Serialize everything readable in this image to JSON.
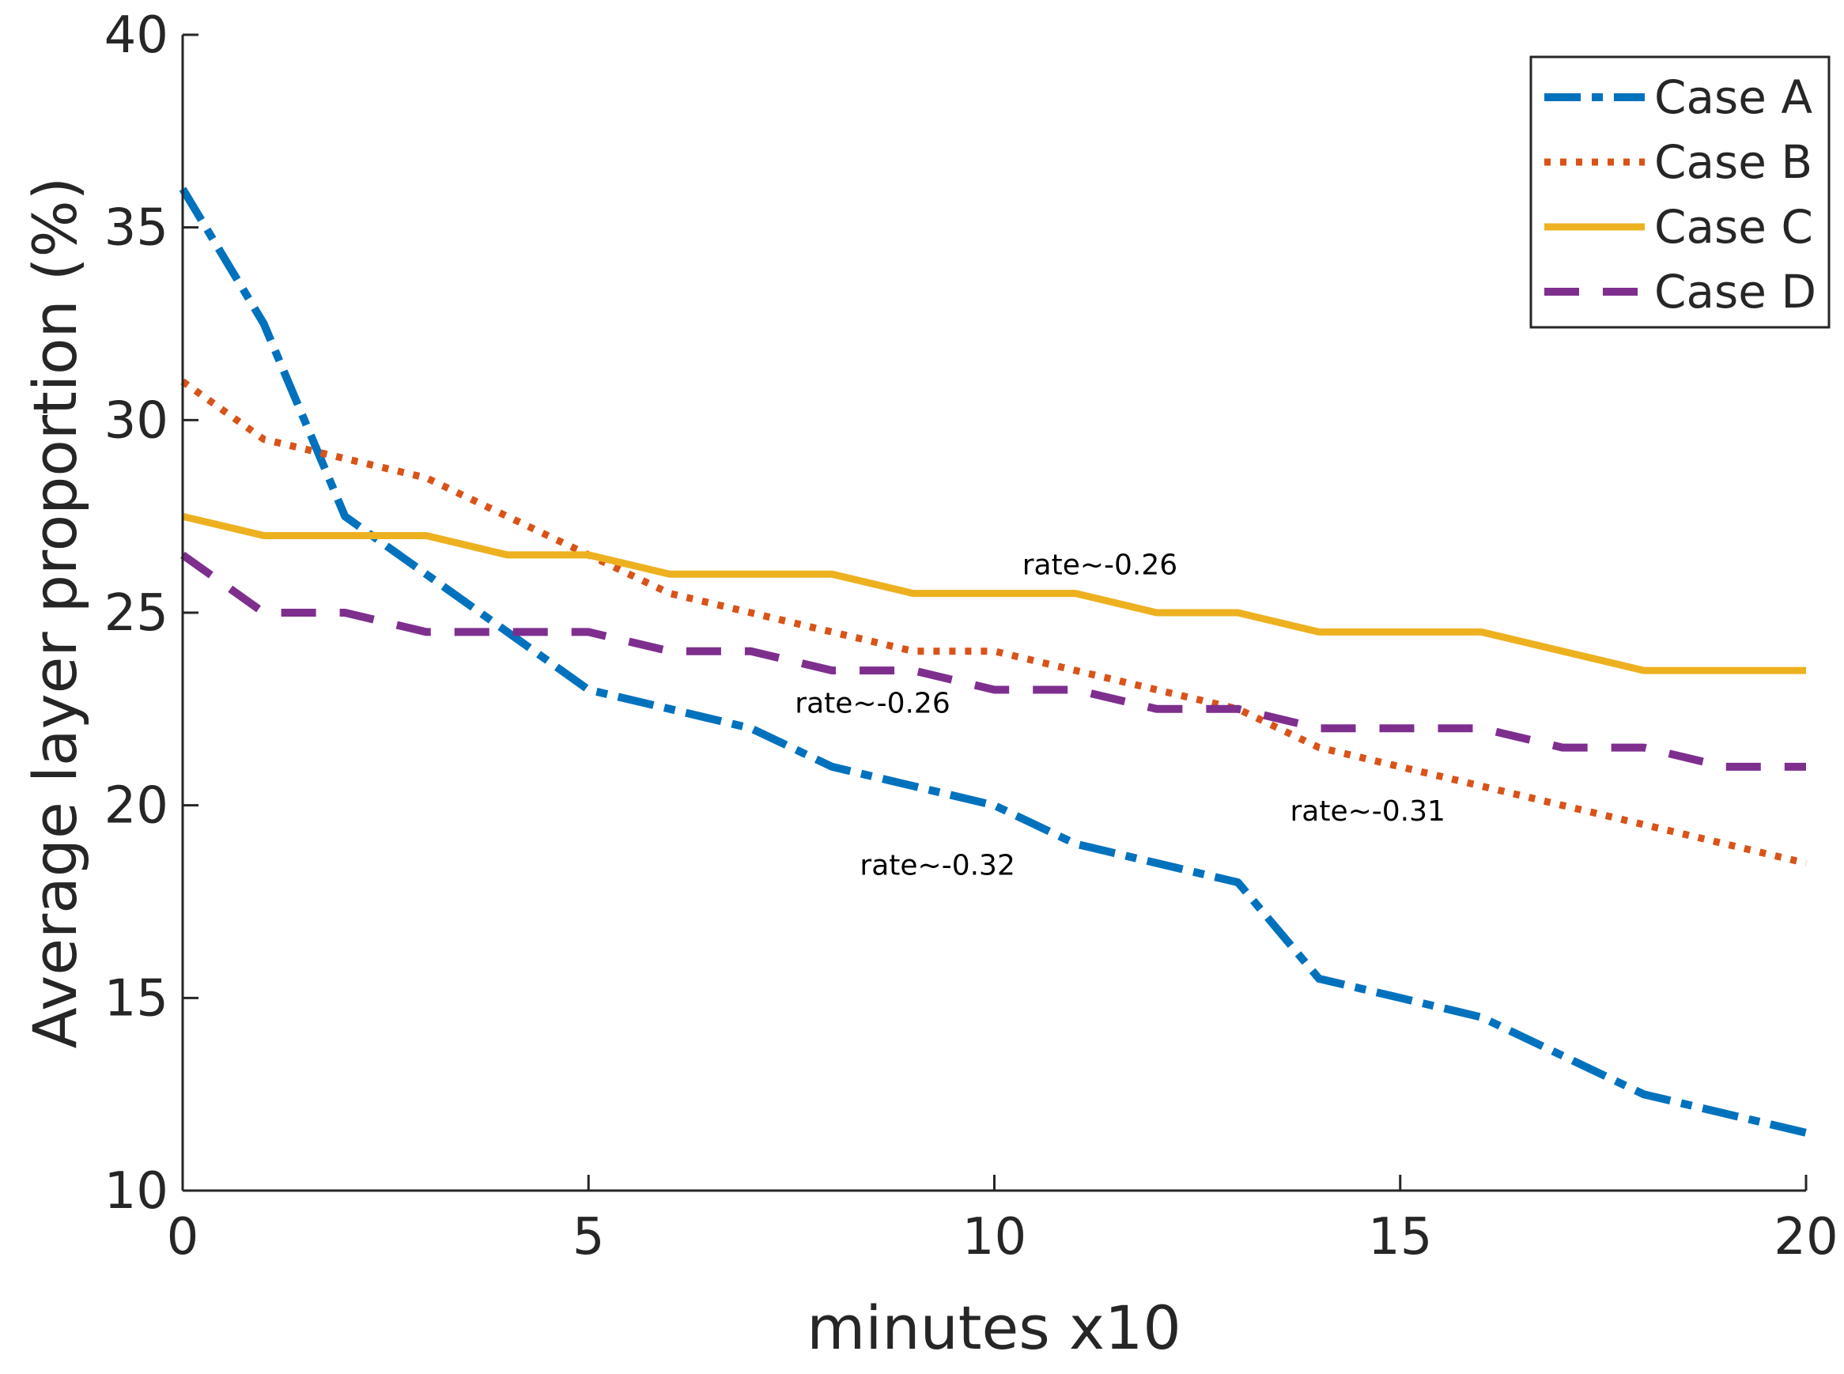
{
  "chart_data": {
    "type": "line",
    "title": "",
    "xlabel": "minutes x10",
    "ylabel": "Average layer proportion (%)",
    "xlim": [
      0,
      20
    ],
    "ylim": [
      10,
      40
    ],
    "xticks": [
      0,
      5,
      10,
      15,
      20
    ],
    "yticks": [
      10,
      15,
      20,
      25,
      30,
      35,
      40
    ],
    "grid": false,
    "legend_position": "top-right",
    "x": [
      0,
      1,
      2,
      3,
      4,
      5,
      6,
      7,
      8,
      9,
      10,
      11,
      12,
      13,
      14,
      15,
      16,
      17,
      18,
      19,
      20
    ],
    "series": [
      {
        "name": "Case A",
        "style": "dash-dot",
        "color": "#0072BD",
        "values": [
          36,
          32.5,
          27.5,
          26,
          24.5,
          23,
          22.5,
          22,
          21,
          20.5,
          20,
          19,
          18.5,
          18,
          15.5,
          15,
          14.5,
          13.5,
          12.5,
          12,
          11.5
        ]
      },
      {
        "name": "Case B",
        "style": "dotted",
        "color": "#D95319",
        "values": [
          31,
          29.5,
          29,
          28.5,
          27.5,
          26.5,
          25.5,
          25,
          24.5,
          24,
          24,
          23.5,
          23,
          22.5,
          21.5,
          21,
          20.5,
          20,
          19.5,
          19,
          18.5
        ]
      },
      {
        "name": "Case C",
        "style": "solid",
        "color": "#EDB120",
        "values": [
          27.5,
          27,
          27,
          27,
          26.5,
          26.5,
          26,
          26,
          26,
          25.5,
          25.5,
          25.5,
          25,
          25,
          24.5,
          24.5,
          24.5,
          24,
          23.5,
          23.5,
          23.5
        ]
      },
      {
        "name": "Case D",
        "style": "dashed",
        "color": "#7E2F8E",
        "values": [
          26.5,
          25,
          25,
          24.5,
          24.5,
          24.5,
          24,
          24,
          23.5,
          23.5,
          23,
          23,
          22.5,
          22.5,
          22,
          22,
          22,
          21.5,
          21.5,
          21,
          21
        ]
      }
    ],
    "annotations": [
      {
        "text": "rate~-0.26",
        "x": 11.3,
        "y": 26.0
      },
      {
        "text": "rate~-0.26",
        "x": 8.5,
        "y": 22.4
      },
      {
        "text": "rate~-0.31",
        "x": 14.6,
        "y": 19.6
      },
      {
        "text": "rate~-0.32",
        "x": 9.3,
        "y": 18.2
      }
    ]
  }
}
